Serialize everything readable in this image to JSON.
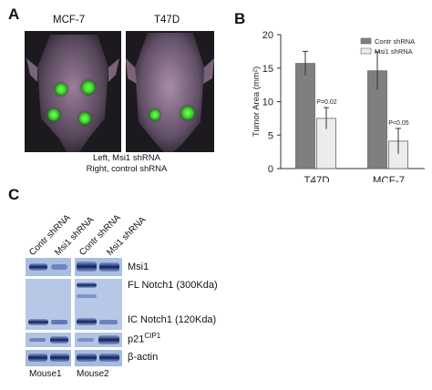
{
  "panel_a": {
    "letter": "A",
    "images": [
      {
        "title": "MCF-7"
      },
      {
        "title": "T47D"
      }
    ],
    "caption_line1": "Left, Msi1 shRNA",
    "caption_line2": "Right, control shRNA"
  },
  "panel_b": {
    "letter": "B",
    "chart_data": {
      "type": "bar",
      "categories": [
        "T47D",
        "MCF-7"
      ],
      "series": [
        {
          "name": "Contr shRNA",
          "values": [
            15.7,
            14.6
          ],
          "errors": [
            1.8,
            2.8
          ],
          "color": "#7f7f7f"
        },
        {
          "name": "Msi1 shRNA",
          "values": [
            7.5,
            4.1
          ],
          "errors": [
            1.6,
            1.9
          ],
          "color": "#ececec"
        }
      ],
      "annotations": [
        "P=0.02",
        "P<0.05"
      ],
      "ylabel": "Tumor Area (mm²)",
      "yticks": [
        "0",
        "5",
        "10",
        "15",
        "20"
      ],
      "ylim": [
        0,
        20
      ],
      "legend_position": "top-right"
    }
  },
  "panel_c": {
    "letter": "C",
    "lanes": [
      "Contr shRNA",
      "Msi1 shRNA",
      "Contr shRNA",
      "Msi1 shRNA"
    ],
    "bands": {
      "msi1": "Msi1",
      "fl_notch": "FL Notch1 (300Kda)",
      "ic_notch": "IC Notch1 (120Kda)",
      "p21_base": "p21",
      "p21_sup": "CIP1",
      "actin": "β-actin"
    },
    "mice": [
      "Mouse1",
      "Mouse2"
    ]
  }
}
